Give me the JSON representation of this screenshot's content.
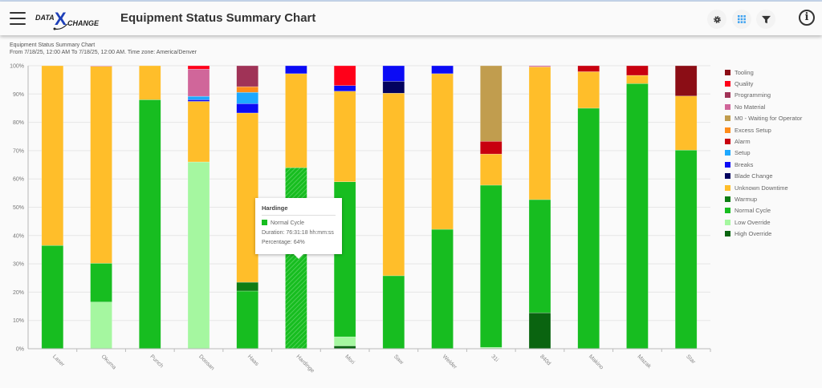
{
  "header": {
    "title": "Equipment Status Summary Chart",
    "logo_text": "DATA X CHANGE",
    "icons": [
      "gear-icon",
      "grid-icon",
      "filter-icon",
      "info-icon"
    ]
  },
  "subtitle": {
    "line1": "Equipment Status Summary Chart",
    "line2": "From 7/18/25, 12:00 AM To 7/18/25, 12:00 AM. Time zone: America/Denver"
  },
  "tooltip": {
    "title": "Hardinge",
    "series": "Normal Cycle",
    "duration": "Duration: 76:31:18 hh:mm:ss",
    "percentage": "Percentage: 64%",
    "color": "#17bd20"
  },
  "chart_data": {
    "type": "bar",
    "stacked": true,
    "ylim": [
      0,
      100
    ],
    "ytick_format": "percent",
    "grid": true,
    "legend": "right",
    "yticks": [
      "0%",
      "10%",
      "20%",
      "30%",
      "40%",
      "50%",
      "60%",
      "70%",
      "80%",
      "90%",
      "100%"
    ],
    "categories": [
      "Laser",
      "Okuma",
      "Punch",
      "Doosan",
      "Haas",
      "Hardinge",
      "Mori",
      "Saw",
      "Welder",
      "31i",
      "840d",
      "Makino",
      "Mazak",
      "Star"
    ],
    "series": [
      {
        "name": "High Override",
        "color": "#0a6410",
        "values": [
          0,
          0,
          0,
          0,
          0,
          0,
          1,
          0,
          0,
          0,
          12.7,
          0,
          0,
          0
        ]
      },
      {
        "name": "Low Override",
        "color": "#a5f7a0",
        "values": [
          0,
          16.5,
          0,
          66,
          0,
          0,
          3.2,
          0,
          0,
          0.5,
          0,
          0,
          0,
          0
        ]
      },
      {
        "name": "Normal Cycle",
        "color": "#17bd20",
        "values": [
          36.5,
          13.7,
          88,
          0,
          20.4,
          64,
          54.8,
          25.8,
          42.2,
          57.3,
          40,
          85,
          93.7,
          70.2
        ]
      },
      {
        "name": "Warmup",
        "color": "#0e7d14",
        "values": [
          0,
          0,
          0,
          0,
          3.1,
          0,
          0,
          0,
          0,
          0,
          0,
          0,
          0,
          0
        ]
      },
      {
        "name": "Unknown Downtime",
        "color": "#ffbe2a",
        "values": [
          63.5,
          69.6,
          12,
          21.4,
          59.8,
          33.2,
          32,
          64.5,
          55,
          11,
          46.9,
          12.9,
          2.9,
          19.1
        ]
      },
      {
        "name": "Blade Change",
        "color": "#03035e",
        "values": [
          0,
          0,
          0,
          0,
          0,
          0,
          0,
          4.2,
          0,
          0,
          0,
          0,
          0,
          0
        ]
      },
      {
        "name": "Breaks",
        "color": "#0b0bf5",
        "values": [
          0,
          0,
          0,
          0.6,
          3.3,
          2.8,
          2,
          5.5,
          2.8,
          0,
          0,
          0,
          0,
          0
        ]
      },
      {
        "name": "Setup",
        "color": "#1ea8ff",
        "values": [
          0,
          0,
          0,
          1.2,
          4,
          0,
          0,
          0,
          0,
          0,
          0,
          0,
          0,
          0
        ]
      },
      {
        "name": "Alarm",
        "color": "#c8000f",
        "values": [
          0,
          0,
          0,
          0,
          0,
          0,
          0,
          0,
          0,
          4.5,
          0,
          2.1,
          3.4,
          0
        ]
      },
      {
        "name": "Excess Setup",
        "color": "#ff8c1a",
        "values": [
          0,
          0,
          0,
          0,
          2,
          0,
          0,
          0,
          0,
          0,
          0,
          0,
          0,
          0
        ]
      },
      {
        "name": "M0 - Waiting for Operator",
        "color": "#c19d4e",
        "values": [
          0,
          0,
          0,
          0,
          0,
          0,
          0,
          0,
          0,
          26.7,
          0,
          0,
          0,
          0
        ]
      },
      {
        "name": "No Material",
        "color": "#d0669a",
        "values": [
          0,
          0.2,
          0,
          9.6,
          0,
          0,
          0,
          0,
          0,
          0,
          0.4,
          0,
          0,
          0
        ]
      },
      {
        "name": "Programming",
        "color": "#a03357",
        "values": [
          0,
          0,
          0,
          0,
          7.4,
          0,
          0,
          0,
          0,
          0,
          0,
          0,
          0,
          0
        ]
      },
      {
        "name": "Quality",
        "color": "#ff0019",
        "values": [
          0,
          0,
          0,
          1.2,
          0,
          0,
          7,
          0,
          0,
          0,
          0,
          0,
          0,
          0
        ]
      },
      {
        "name": "Tooling",
        "color": "#8b0d15",
        "values": [
          0,
          0,
          0,
          0,
          0,
          0,
          0,
          0,
          0,
          0,
          0,
          0,
          0,
          10.7
        ]
      }
    ],
    "legend_order": [
      "Tooling",
      "Quality",
      "Programming",
      "No Material",
      "M0 - Waiting for Operator",
      "Excess Setup",
      "Alarm",
      "Setup",
      "Breaks",
      "Blade Change",
      "Unknown Downtime",
      "Warmup",
      "Normal Cycle",
      "Low Override",
      "High Override"
    ],
    "highlighted": {
      "category": "Hardinge",
      "series": "Normal Cycle"
    }
  }
}
